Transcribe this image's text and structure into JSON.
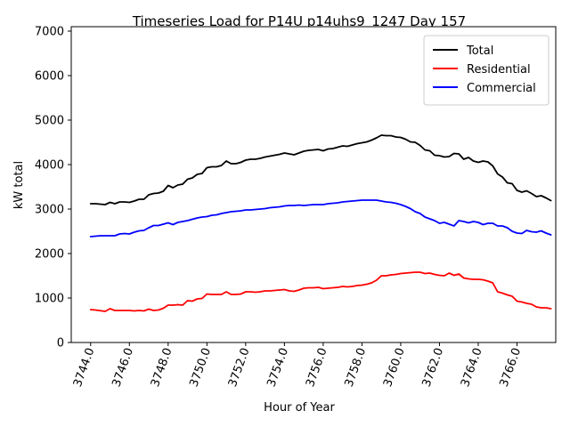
{
  "chart_data": {
    "type": "line",
    "title": "Timeseries Load for P14U p14uhs9_1247  Day 157",
    "xlabel": "Hour of Year",
    "ylabel": "kW total",
    "xlim": [
      3743.0,
      3768.0
    ],
    "ylim": [
      0,
      7100
    ],
    "xticks": [
      3744,
      3746,
      3748,
      3750,
      3752,
      3754,
      3756,
      3758,
      3760,
      3762,
      3764,
      3766
    ],
    "xtick_labels": [
      "3744.0",
      "3746.0",
      "3748.0",
      "3750.0",
      "3752.0",
      "3754.0",
      "3756.0",
      "3758.0",
      "3760.0",
      "3762.0",
      "3764.0",
      "3766.0"
    ],
    "yticks": [
      0,
      1000,
      2000,
      3000,
      4000,
      5000,
      6000,
      7000
    ],
    "ytick_labels": [
      "0",
      "1000",
      "2000",
      "3000",
      "4000",
      "5000",
      "6000",
      "7000"
    ],
    "legend_position": "top-right",
    "x": [
      3744.0,
      3744.25,
      3744.5,
      3744.75,
      3745.0,
      3745.25,
      3745.5,
      3745.75,
      3746.0,
      3746.25,
      3746.5,
      3746.75,
      3747.0,
      3747.25,
      3747.5,
      3747.75,
      3748.0,
      3748.25,
      3748.5,
      3748.75,
      3749.0,
      3749.25,
      3749.5,
      3749.75,
      3750.0,
      3750.25,
      3750.5,
      3750.75,
      3751.0,
      3751.25,
      3751.5,
      3751.75,
      3752.0,
      3752.25,
      3752.5,
      3752.75,
      3753.0,
      3753.25,
      3753.5,
      3753.75,
      3754.0,
      3754.25,
      3754.5,
      3754.75,
      3755.0,
      3755.25,
      3755.5,
      3755.75,
      3756.0,
      3756.25,
      3756.5,
      3756.75,
      3757.0,
      3757.25,
      3757.5,
      3757.75,
      3758.0,
      3758.25,
      3758.5,
      3758.75,
      3759.0,
      3759.25,
      3759.5,
      3759.75,
      3760.0,
      3760.25,
      3760.5,
      3760.75,
      3761.0,
      3761.25,
      3761.5,
      3761.75,
      3762.0,
      3762.25,
      3762.5,
      3762.75,
      3763.0,
      3763.25,
      3763.5,
      3763.75,
      3764.0,
      3764.25,
      3764.5,
      3764.75,
      3765.0,
      3765.25,
      3765.5,
      3765.75,
      3766.0,
      3766.25,
      3766.5,
      3766.75,
      3767.0,
      3767.25,
      3767.5,
      3767.75
    ],
    "series": [
      {
        "name": "Total",
        "color": "#000000",
        "values": [
          3120,
          3120,
          3110,
          3100,
          3150,
          3120,
          3160,
          3160,
          3150,
          3180,
          3220,
          3220,
          3320,
          3350,
          3360,
          3400,
          3530,
          3480,
          3540,
          3560,
          3670,
          3700,
          3780,
          3800,
          3930,
          3950,
          3950,
          3980,
          4080,
          4020,
          4020,
          4050,
          4100,
          4120,
          4120,
          4140,
          4170,
          4190,
          4210,
          4230,
          4260,
          4240,
          4220,
          4260,
          4300,
          4320,
          4330,
          4340,
          4310,
          4350,
          4360,
          4390,
          4420,
          4410,
          4440,
          4470,
          4490,
          4510,
          4550,
          4600,
          4660,
          4650,
          4650,
          4620,
          4610,
          4570,
          4510,
          4500,
          4430,
          4330,
          4310,
          4210,
          4200,
          4170,
          4180,
          4250,
          4240,
          4120,
          4160,
          4080,
          4050,
          4080,
          4060,
          3970,
          3790,
          3720,
          3590,
          3570,
          3420,
          3380,
          3410,
          3350,
          3280,
          3300,
          3250,
          3190
        ]
      },
      {
        "name": "Residential",
        "color": "#ff0000",
        "values": [
          740,
          730,
          715,
          700,
          760,
          720,
          720,
          720,
          720,
          710,
          720,
          710,
          750,
          720,
          730,
          770,
          840,
          840,
          850,
          840,
          940,
          930,
          980,
          990,
          1090,
          1080,
          1080,
          1080,
          1140,
          1080,
          1080,
          1090,
          1140,
          1140,
          1130,
          1140,
          1160,
          1160,
          1170,
          1180,
          1190,
          1160,
          1150,
          1180,
          1220,
          1230,
          1230,
          1240,
          1210,
          1220,
          1230,
          1240,
          1260,
          1250,
          1260,
          1280,
          1290,
          1310,
          1340,
          1400,
          1500,
          1500,
          1520,
          1530,
          1550,
          1560,
          1570,
          1580,
          1580,
          1550,
          1560,
          1530,
          1510,
          1500,
          1560,
          1510,
          1540,
          1450,
          1430,
          1420,
          1420,
          1410,
          1380,
          1340,
          1140,
          1110,
          1070,
          1040,
          930,
          910,
          880,
          860,
          800,
          780,
          780,
          760
        ]
      },
      {
        "name": "Commercial",
        "color": "#0000ff",
        "values": [
          2380,
          2390,
          2400,
          2400,
          2400,
          2400,
          2440,
          2450,
          2440,
          2480,
          2510,
          2520,
          2580,
          2630,
          2630,
          2660,
          2690,
          2650,
          2700,
          2720,
          2740,
          2770,
          2800,
          2820,
          2830,
          2860,
          2870,
          2900,
          2920,
          2940,
          2950,
          2960,
          2980,
          2980,
          2990,
          3000,
          3010,
          3030,
          3040,
          3050,
          3070,
          3080,
          3080,
          3090,
          3080,
          3090,
          3100,
          3100,
          3100,
          3120,
          3130,
          3140,
          3160,
          3170,
          3180,
          3190,
          3200,
          3200,
          3200,
          3200,
          3180,
          3160,
          3150,
          3130,
          3100,
          3060,
          3010,
          2940,
          2900,
          2820,
          2780,
          2740,
          2680,
          2700,
          2660,
          2620,
          2740,
          2720,
          2690,
          2720,
          2700,
          2650,
          2680,
          2680,
          2620,
          2620,
          2580,
          2500,
          2460,
          2450,
          2520,
          2490,
          2480,
          2510,
          2460,
          2420
        ]
      }
    ]
  }
}
